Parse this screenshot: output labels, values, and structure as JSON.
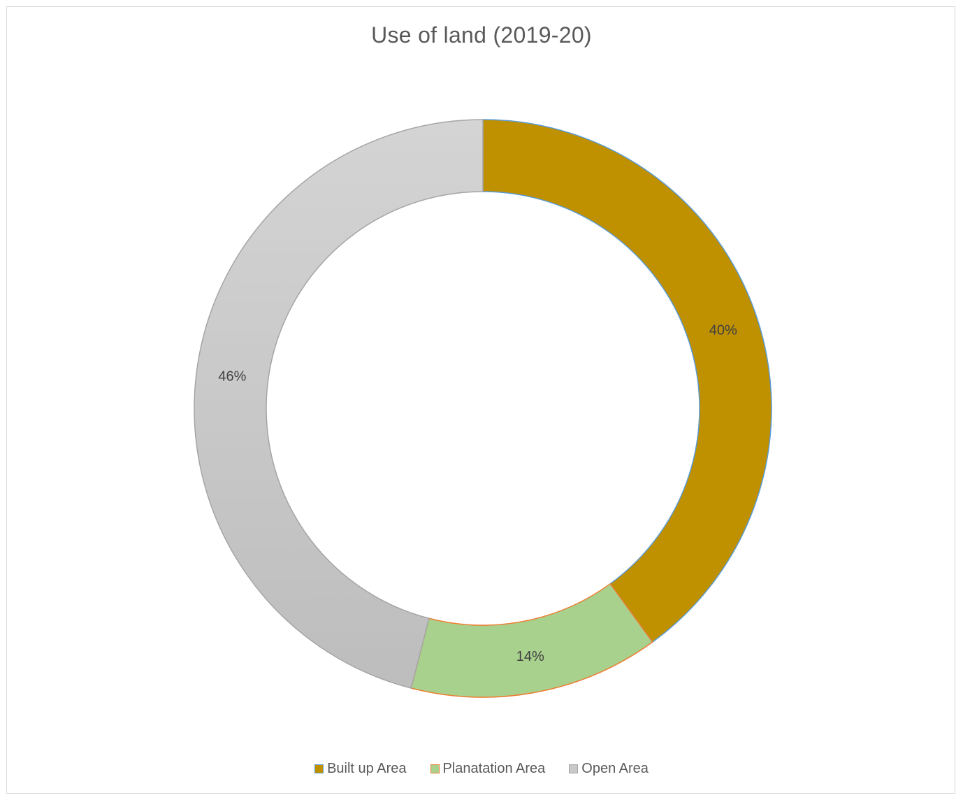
{
  "chart_data": {
    "type": "pie",
    "variant": "doughnut",
    "title": "Use of land (2019-20)",
    "categories": [
      "Built up Area",
      "Planatation Area",
      "Open Area"
    ],
    "values": [
      40,
      14,
      46
    ],
    "value_labels": [
      "40%",
      "14%",
      "46%"
    ],
    "colors": [
      "#bf9000",
      "#a9d18e",
      "#c9c9c9"
    ],
    "border_colors": [
      "#5b9bd5",
      "#ed7d31",
      "#a5a5a5"
    ],
    "legend": {
      "position": "bottom",
      "labels": [
        "Built up Area",
        "Planatation Area",
        "Open Area"
      ]
    }
  }
}
